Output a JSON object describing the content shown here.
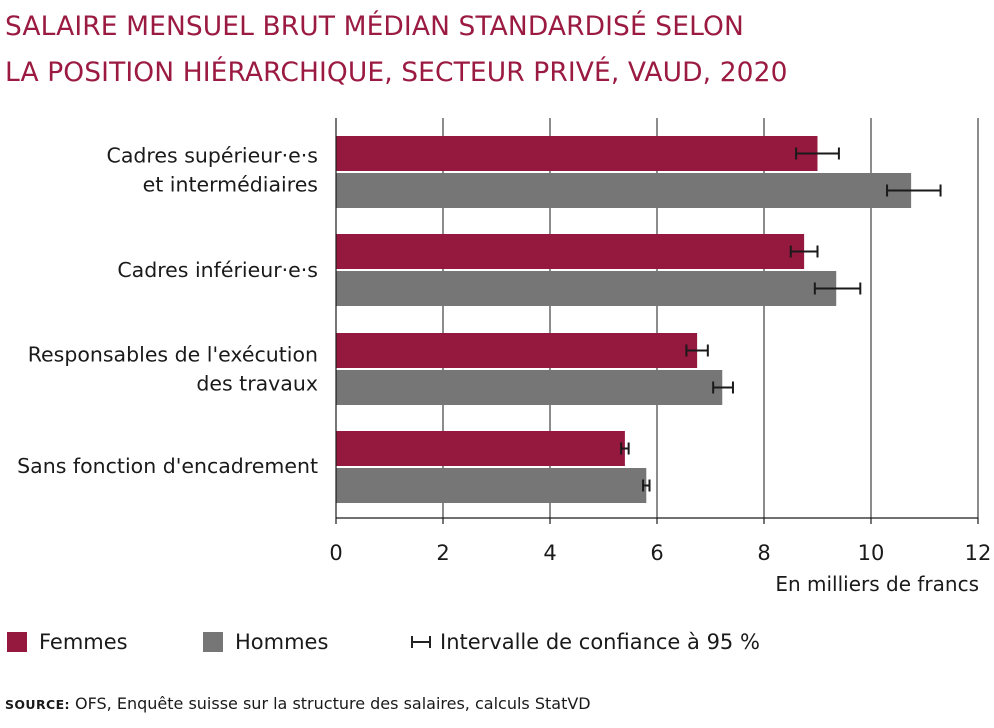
{
  "title_lines": [
    "SALAIRE MENSUEL BRUT MÉDIAN STANDARDISÉ SELON",
    "LA POSITION HIÉRARCHIQUE, SECTEUR PRIVÉ, VAUD, 2020"
  ],
  "chart_data": {
    "type": "bar",
    "orientation": "horizontal",
    "categories": [
      [
        "Cadres supérieur·e·s",
        "et intermédiaires"
      ],
      [
        "Cadres inférieur·e·s"
      ],
      [
        "Responsables de l'exécution",
        "des travaux"
      ],
      [
        "Sans fonction d'encadrement"
      ]
    ],
    "series": [
      {
        "name": "Femmes",
        "color": "#95183f",
        "values": [
          9.0,
          8.75,
          6.75,
          5.4
        ],
        "ci": [
          [
            8.6,
            9.4
          ],
          [
            8.5,
            9.0
          ],
          [
            6.55,
            6.95
          ],
          [
            5.33,
            5.47
          ]
        ]
      },
      {
        "name": "Hommes",
        "color": "#767676",
        "values": [
          10.75,
          9.35,
          7.22,
          5.8
        ],
        "ci": [
          [
            10.3,
            11.3
          ],
          [
            8.95,
            9.8
          ],
          [
            7.05,
            7.42
          ],
          [
            5.74,
            5.86
          ]
        ]
      }
    ],
    "xlim": [
      0,
      12
    ],
    "xticks": [
      0,
      2,
      4,
      6,
      8,
      10,
      12
    ],
    "xlabel": "En milliers de francs",
    "grid": true,
    "legend_position": "bottom"
  },
  "legend": {
    "femmes": "Femmes",
    "hommes": "Hommes",
    "ci": "Intervalle de confiance à 95 %"
  },
  "source": {
    "lead": "SOURCE:",
    "text": " OFS, Enquête suisse sur la structure des salaires, calculs StatVD"
  }
}
